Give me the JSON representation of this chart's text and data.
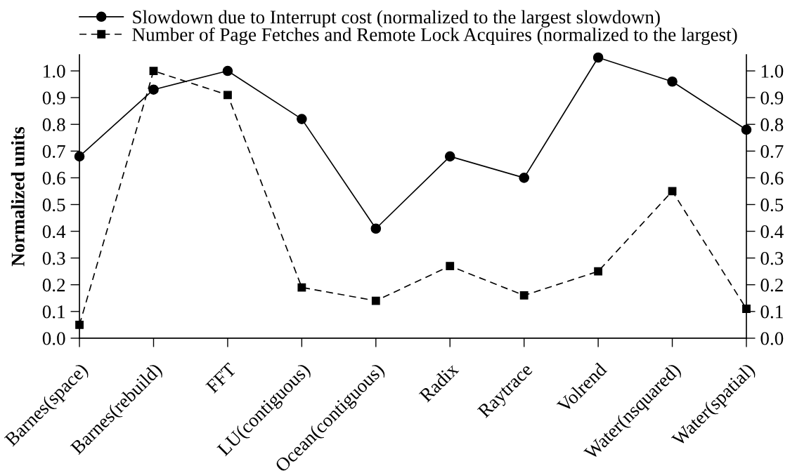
{
  "chart_data": {
    "type": "line",
    "ylabel": "Normalized units",
    "categories": [
      "Barnes(space)",
      "Barnes(rebuild)",
      "FFT",
      "LU(contiguous)",
      "Ocean(contiguous)",
      "Radix",
      "Raytrace",
      "Volrend",
      "Water(nsquared)",
      "Water(spatial)"
    ],
    "series": [
      {
        "name": "Slowdown due to Interrupt cost (normalized to the largest slowdown)",
        "color": "#000000",
        "marker": "circle",
        "line_style": "solid",
        "values": [
          0.68,
          0.93,
          1.0,
          0.82,
          0.41,
          0.68,
          0.6,
          1.05,
          0.96,
          0.78
        ]
      },
      {
        "name": "Number of Page Fetches and Remote Lock Acquires (normalized to the largest)",
        "color": "#000000",
        "marker": "square",
        "line_style": "dashed",
        "values": [
          0.05,
          1.0,
          0.91,
          0.19,
          0.14,
          0.27,
          0.16,
          0.25,
          0.55,
          0.11
        ]
      }
    ],
    "ylim": [
      0,
      1.06
    ],
    "yticks": [
      {
        "value": 0,
        "label": "0.0"
      },
      0.1,
      0.2,
      0.3,
      0.4,
      0.5,
      0.6,
      0.7,
      0.8,
      0.9,
      {
        "value": 1,
        "label": "1.0"
      }
    ],
    "y2lim": [
      0,
      1.06
    ],
    "y2ticks": [
      {
        "value": 0,
        "label": "0.0"
      },
      0.1,
      0.2,
      0.3,
      0.4,
      0.5,
      0.6,
      0.7,
      0.8,
      0.9,
      {
        "value": 1,
        "label": "1.0"
      }
    ],
    "legend": "top"
  }
}
